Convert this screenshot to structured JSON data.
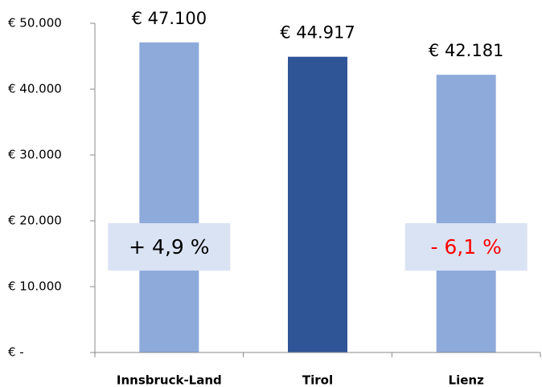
{
  "chart_data": {
    "type": "bar",
    "categories": [
      "Innsbruck-Land",
      "Tirol",
      "Lienz"
    ],
    "values": [
      47100,
      44917,
      42181
    ],
    "value_labels": [
      "€ 47.100",
      "€ 44.917",
      "€ 42.181"
    ],
    "colors": [
      "#8eaadb",
      "#2f5597",
      "#8eaadb"
    ],
    "ylim": [
      0,
      50000
    ],
    "yticks": [
      {
        "value": 0,
        "label": "€ -"
      },
      {
        "value": 10000,
        "label": "€ 10.000"
      },
      {
        "value": 20000,
        "label": "€ 20.000"
      },
      {
        "value": 30000,
        "label": "€ 30.000"
      },
      {
        "value": 40000,
        "label": "€ 40.000"
      },
      {
        "value": 50000,
        "label": "€ 50.000"
      }
    ],
    "annotations": [
      {
        "text": "+ 4,9 %",
        "color": "#000000"
      },
      {
        "text": "- 6,1 %",
        "color": "#ff0000"
      }
    ]
  }
}
